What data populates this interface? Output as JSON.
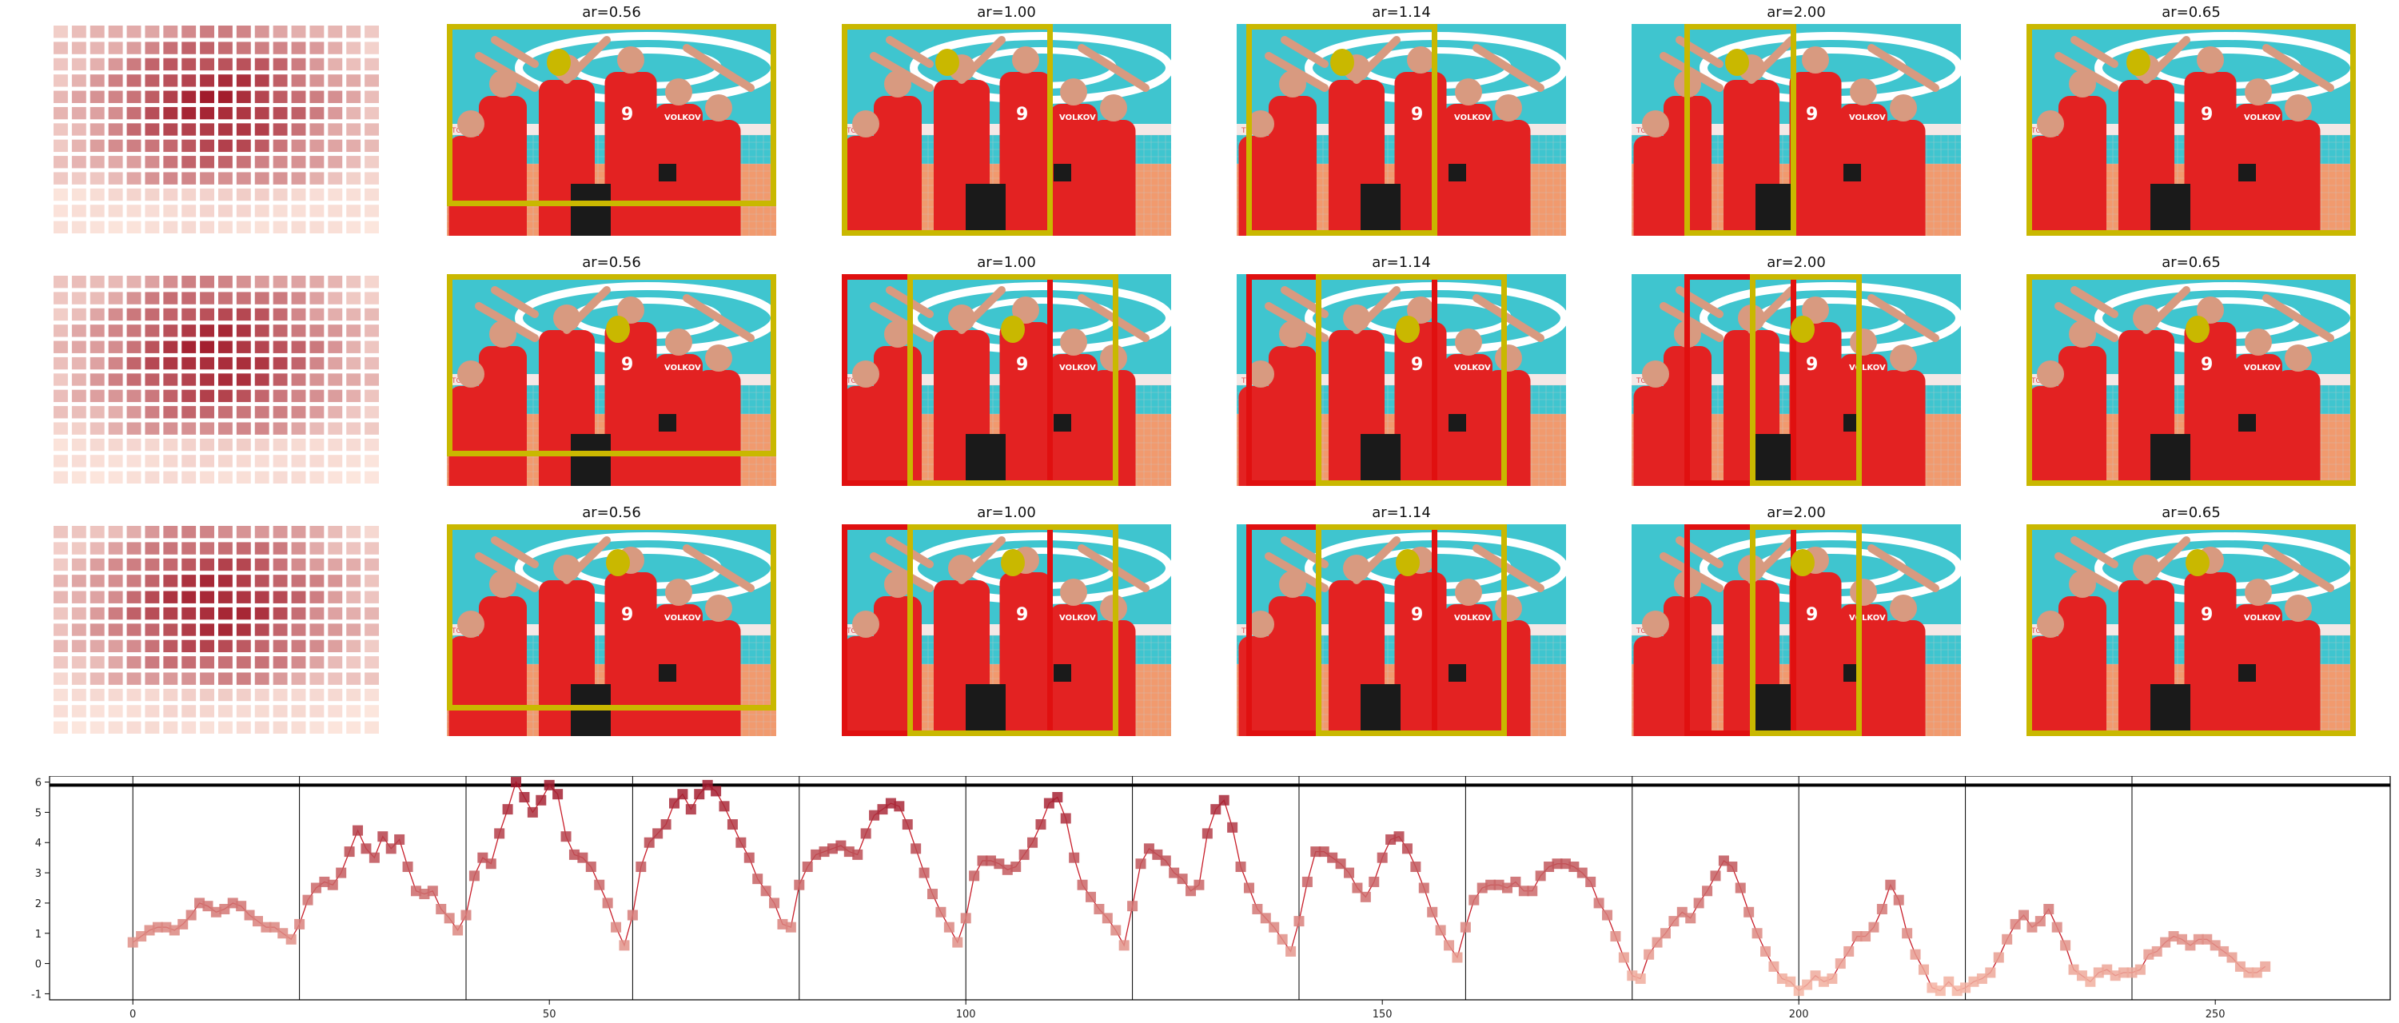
{
  "colors": {
    "yellow_box": "#c9b800",
    "red_box": "#e01010",
    "heat_low": "#fde8df",
    "heat_high": "#a01828",
    "line": "#c81e2a",
    "threshold": "#000000"
  },
  "image_content": {
    "banner_text": "TOKYO 2020",
    "jersey_name": "VOLKOV",
    "jersey_number": "9"
  },
  "panel_columns": [
    {
      "title": ""
    },
    {
      "title": "ar=0.56"
    },
    {
      "title": "ar=1.00"
    },
    {
      "title": "ar=1.14"
    },
    {
      "title": "ar=2.00"
    },
    {
      "title": "ar=0.65"
    }
  ],
  "chart_data": {
    "type": "line",
    "marker": "square",
    "ylim": [
      -1.2,
      6.2
    ],
    "xlim": [
      -10,
      271
    ],
    "yticks": [
      -1,
      0,
      1,
      2,
      3,
      4,
      5,
      6
    ],
    "xticks": [
      0,
      50,
      100,
      150,
      200,
      250
    ],
    "threshold_y": 5.9,
    "vertical_lines": [
      0,
      20,
      40,
      60,
      80,
      100,
      120,
      140,
      160,
      180,
      200,
      220,
      240
    ],
    "x_start": 0,
    "values": [
      0.7,
      0.9,
      1.1,
      1.2,
      1.2,
      1.1,
      1.3,
      1.6,
      2.0,
      1.9,
      1.7,
      1.8,
      2.0,
      1.9,
      1.6,
      1.4,
      1.2,
      1.2,
      1.0,
      0.8,
      1.3,
      2.1,
      2.5,
      2.7,
      2.6,
      3.0,
      3.7,
      4.4,
      3.8,
      3.5,
      4.2,
      3.8,
      4.1,
      3.2,
      2.4,
      2.3,
      2.4,
      1.8,
      1.5,
      1.1,
      1.6,
      2.9,
      3.5,
      3.3,
      4.3,
      5.1,
      6.0,
      5.5,
      5.0,
      5.4,
      5.9,
      5.6,
      4.2,
      3.6,
      3.5,
      3.2,
      2.6,
      2.0,
      1.2,
      0.6,
      1.6,
      3.2,
      4.0,
      4.3,
      4.6,
      5.3,
      5.6,
      5.1,
      5.6,
      5.9,
      5.7,
      5.2,
      4.6,
      4.0,
      3.5,
      2.8,
      2.4,
      2.0,
      1.3,
      1.2,
      2.6,
      3.2,
      3.6,
      3.7,
      3.8,
      3.9,
      3.7,
      3.6,
      4.3,
      4.9,
      5.1,
      5.3,
      5.2,
      4.6,
      3.8,
      3.0,
      2.3,
      1.7,
      1.2,
      0.7,
      1.5,
      2.9,
      3.4,
      3.4,
      3.3,
      3.1,
      3.2,
      3.6,
      4.0,
      4.6,
      5.3,
      5.5,
      4.8,
      3.5,
      2.6,
      2.2,
      1.8,
      1.5,
      1.1,
      0.6,
      1.9,
      3.3,
      3.8,
      3.6,
      3.4,
      3.0,
      2.8,
      2.4,
      2.6,
      4.3,
      5.1,
      5.4,
      4.5,
      3.2,
      2.5,
      1.8,
      1.5,
      1.2,
      0.8,
      0.4,
      1.4,
      2.7,
      3.7,
      3.7,
      3.5,
      3.3,
      3.0,
      2.5,
      2.2,
      2.7,
      3.5,
      4.1,
      4.2,
      3.8,
      3.2,
      2.5,
      1.7,
      1.1,
      0.6,
      0.2,
      1.2,
      2.1,
      2.5,
      2.6,
      2.6,
      2.5,
      2.7,
      2.4,
      2.4,
      2.9,
      3.2,
      3.3,
      3.3,
      3.2,
      3.0,
      2.7,
      2.0,
      1.6,
      0.9,
      0.2,
      -0.4,
      -0.5,
      0.3,
      0.7,
      1.0,
      1.4,
      1.7,
      1.5,
      2.0,
      2.4,
      2.9,
      3.4,
      3.2,
      2.5,
      1.7,
      1.0,
      0.4,
      -0.1,
      -0.5,
      -0.6,
      -0.9,
      -0.7,
      -0.4,
      -0.6,
      -0.5,
      0.0,
      0.4,
      0.9,
      0.9,
      1.2,
      1.8,
      2.6,
      2.1,
      1.0,
      0.3,
      -0.2,
      -0.8,
      -0.9,
      -0.6,
      -0.9,
      -0.8,
      -0.6,
      -0.5,
      -0.3,
      0.2,
      0.8,
      1.3,
      1.6,
      1.2,
      1.4,
      1.8,
      1.2,
      0.6,
      -0.2,
      -0.4,
      -0.6,
      -0.3,
      -0.2,
      -0.4,
      -0.3,
      -0.3,
      -0.2,
      0.3,
      0.4,
      0.7,
      0.9,
      0.8,
      0.6,
      0.8,
      0.8,
      0.6,
      0.4,
      0.2,
      -0.1,
      -0.3,
      -0.3,
      -0.1
    ]
  },
  "rows": [
    {
      "heat": "A",
      "boxes": [
        {
          "type": "yellow_only",
          "y": 1,
          "x": 0,
          "w": 1.0,
          "h": 0.86,
          "dot": [
            0.34,
            0.18
          ]
        },
        {
          "type": "yellow_only",
          "x": 0,
          "w": 0.64,
          "h": 1.0,
          "dot": [
            0.32,
            0.18
          ]
        },
        {
          "type": "yellow_only",
          "x": 0.03,
          "w": 0.58,
          "h": 1.0,
          "dot": [
            0.32,
            0.18
          ]
        },
        {
          "type": "yellow_only",
          "x": 0.16,
          "w": 0.34,
          "h": 1.0,
          "dot": [
            0.32,
            0.18
          ]
        },
        {
          "type": "yellow_only",
          "x": 0,
          "w": 1.0,
          "h": 1.0,
          "dot": [
            0.34,
            0.18
          ]
        }
      ]
    },
    {
      "heat": "B",
      "boxes": [
        {
          "type": "yellow_only",
          "x": 0,
          "w": 1.0,
          "h": 0.86,
          "dot": [
            0.52,
            0.26
          ]
        },
        {
          "type": "red_yellow",
          "rx": 0,
          "rw": 0.64,
          "x": 0.2,
          "w": 0.64,
          "dot": [
            0.52,
            0.26
          ]
        },
        {
          "type": "red_yellow",
          "rx": 0.03,
          "rw": 0.58,
          "x": 0.24,
          "w": 0.58,
          "dot": [
            0.52,
            0.26
          ]
        },
        {
          "type": "red_yellow",
          "rx": 0.16,
          "rw": 0.34,
          "x": 0.36,
          "w": 0.34,
          "dot": [
            0.52,
            0.26
          ]
        },
        {
          "type": "yellow_only",
          "x": 0,
          "w": 1.0,
          "h": 1.0,
          "dot": [
            0.52,
            0.26
          ]
        }
      ]
    },
    {
      "heat": "C",
      "boxes": [
        {
          "type": "yellow_only",
          "x": 0,
          "w": 1.0,
          "h": 0.88,
          "dot": [
            0.52,
            0.18
          ]
        },
        {
          "type": "red_yellow",
          "rx": 0,
          "rw": 0.64,
          "x": 0.2,
          "w": 0.64,
          "dot": [
            0.52,
            0.18
          ]
        },
        {
          "type": "red_yellow",
          "rx": 0.03,
          "rw": 0.58,
          "x": 0.24,
          "w": 0.58,
          "dot": [
            0.52,
            0.18
          ]
        },
        {
          "type": "red_yellow",
          "rx": 0.16,
          "rw": 0.34,
          "x": 0.36,
          "w": 0.34,
          "dot": [
            0.52,
            0.18
          ]
        },
        {
          "type": "yellow_only",
          "x": 0,
          "w": 1.0,
          "h": 1.0,
          "dot": [
            0.52,
            0.18
          ]
        }
      ]
    }
  ]
}
